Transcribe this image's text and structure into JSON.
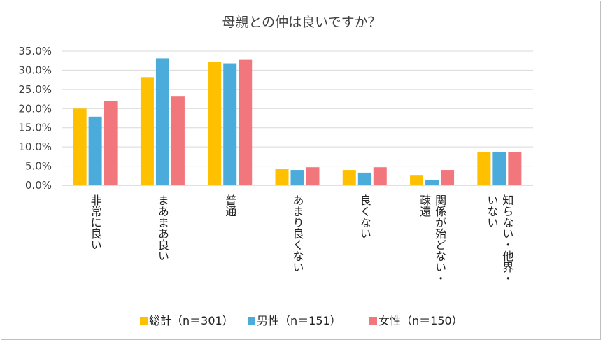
{
  "chart_data": {
    "type": "bar",
    "title": "母親との仲は良いですか？",
    "categories": [
      "非常に良い",
      "まあまあ良い",
      "普通",
      "あまり良くない",
      "良くない",
      "関係が殆どない・疎遠",
      "知らない・他界・いない"
    ],
    "category_lines": [
      [
        "非常に良い"
      ],
      [
        "まあまあ良い"
      ],
      [
        "普通"
      ],
      [
        "あまり良くない"
      ],
      [
        "良くない"
      ],
      [
        "関係が殆どない・",
        "疎遠"
      ],
      [
        "知らない・他界・",
        "いない"
      ]
    ],
    "series": [
      {
        "name": "総計（n＝301）",
        "color": "#FFC000",
        "values": [
          20.0,
          28.2,
          32.2,
          4.3,
          4.0,
          2.7,
          8.6
        ]
      },
      {
        "name": "男性（n＝151）",
        "color": "#4BACDC",
        "values": [
          17.9,
          33.1,
          31.8,
          4.0,
          3.3,
          1.3,
          8.6
        ]
      },
      {
        "name": "女性（n＝150）",
        "color": "#F2777C",
        "values": [
          22.0,
          23.3,
          32.7,
          4.7,
          4.7,
          4.0,
          8.7
        ]
      }
    ],
    "y_ticks": [
      "0.0%",
      "5.0%",
      "10.0%",
      "15.0%",
      "20.0%",
      "25.0%",
      "30.0%",
      "35.0%"
    ],
    "ylim": [
      0,
      35
    ],
    "grid": true,
    "legend_position": "bottom"
  }
}
